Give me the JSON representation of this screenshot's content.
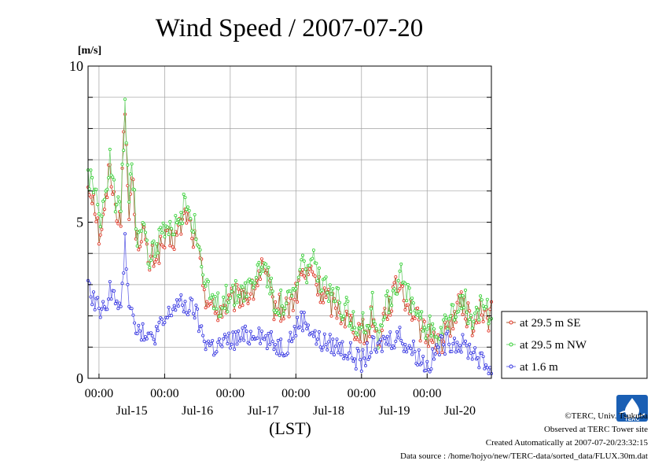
{
  "chart_data": {
    "type": "line",
    "title": "Wind Speed / 2007-07-20",
    "ylabel": "[m/s]",
    "xlabel": "(LST)",
    "ylim": [
      0,
      10
    ],
    "yticks": [
      "0",
      "5",
      "10"
    ],
    "x_range": [
      "2007-07-14T20:00",
      "2007-07-20T23:30"
    ],
    "x_time_tick_label": "00:00",
    "x_time_ticks": [
      "2007-07-15T00:00",
      "2007-07-16T00:00",
      "2007-07-17T00:00",
      "2007-07-18T00:00",
      "2007-07-19T00:00",
      "2007-07-20T00:00"
    ],
    "x_day_labels": [
      "Jul-15",
      "Jul-16",
      "Jul-17",
      "Jul-18",
      "Jul-19",
      "Jul-20"
    ],
    "grid": true,
    "legend_position": "right",
    "series": [
      {
        "name": "at 29.5 m SE",
        "color": "#e03020",
        "line_color": "#a05a28",
        "keypoints": [
          [
            "2007-07-14T20:00",
            6.2
          ],
          [
            "2007-07-14T22:00",
            5.9
          ],
          [
            "2007-07-15T00:00",
            4.6
          ],
          [
            "2007-07-15T02:00",
            5.2
          ],
          [
            "2007-07-15T04:00",
            6.9
          ],
          [
            "2007-07-15T06:00",
            5.4
          ],
          [
            "2007-07-15T08:00",
            5.3
          ],
          [
            "2007-07-15T09:30",
            8.6
          ],
          [
            "2007-07-15T11:00",
            5.1
          ],
          [
            "2007-07-15T12:00",
            6.6
          ],
          [
            "2007-07-15T14:00",
            4.3
          ],
          [
            "2007-07-15T16:00",
            4.9
          ],
          [
            "2007-07-15T18:00",
            3.6
          ],
          [
            "2007-07-15T20:00",
            3.9
          ],
          [
            "2007-07-16T00:00",
            4.3
          ],
          [
            "2007-07-16T04:00",
            4.5
          ],
          [
            "2007-07-16T08:00",
            5.3
          ],
          [
            "2007-07-16T11:00",
            4.4
          ],
          [
            "2007-07-16T13:00",
            3.7
          ],
          [
            "2007-07-16T15:00",
            2.7
          ],
          [
            "2007-07-16T18:00",
            2.1
          ],
          [
            "2007-07-17T00:00",
            2.4
          ],
          [
            "2007-07-17T04:00",
            2.7
          ],
          [
            "2007-07-17T08:00",
            2.7
          ],
          [
            "2007-07-17T10:00",
            3.2
          ],
          [
            "2007-07-17T12:00",
            3.5
          ],
          [
            "2007-07-17T14:00",
            2.9
          ],
          [
            "2007-07-17T16:00",
            2.3
          ],
          [
            "2007-07-17T20:00",
            2.2
          ],
          [
            "2007-07-18T00:00",
            2.6
          ],
          [
            "2007-07-18T02:00",
            3.4
          ],
          [
            "2007-07-18T04:00",
            3.2
          ],
          [
            "2007-07-18T06:00",
            3.5
          ],
          [
            "2007-07-18T08:00",
            2.9
          ],
          [
            "2007-07-18T12:00",
            2.5
          ],
          [
            "2007-07-18T16:00",
            2.2
          ],
          [
            "2007-07-18T20:00",
            1.8
          ],
          [
            "2007-07-19T00:00",
            1.5
          ],
          [
            "2007-07-19T02:00",
            1.4
          ],
          [
            "2007-07-19T04:00",
            2.1
          ],
          [
            "2007-07-19T06:00",
            1.1
          ],
          [
            "2007-07-19T08:00",
            2.0
          ],
          [
            "2007-07-19T12:00",
            2.7
          ],
          [
            "2007-07-19T14:00",
            3.1
          ],
          [
            "2007-07-19T16:00",
            2.6
          ],
          [
            "2007-07-19T18:00",
            2.3
          ],
          [
            "2007-07-19T20:00",
            1.9
          ],
          [
            "2007-07-20T00:00",
            1.2
          ],
          [
            "2007-07-20T02:00",
            1.5
          ],
          [
            "2007-07-20T04:00",
            1.1
          ],
          [
            "2007-07-20T06:00",
            1.3
          ],
          [
            "2007-07-20T08:00",
            1.7
          ],
          [
            "2007-07-20T10:00",
            2.0
          ],
          [
            "2007-07-20T12:00",
            2.4
          ],
          [
            "2007-07-20T14:00",
            2.2
          ],
          [
            "2007-07-20T16:00",
            1.8
          ],
          [
            "2007-07-20T18:00",
            1.7
          ],
          [
            "2007-07-20T20:00",
            2.2
          ],
          [
            "2007-07-20T22:00",
            1.9
          ],
          [
            "2007-07-20T23:30",
            2.1
          ]
        ]
      },
      {
        "name": "at 29.5 m NW",
        "color": "#30d030",
        "line_color": "#70d070",
        "keypoints": [
          [
            "2007-07-14T20:00",
            6.5
          ],
          [
            "2007-07-14T22:00",
            6.3
          ],
          [
            "2007-07-15T00:00",
            5.0
          ],
          [
            "2007-07-15T02:00",
            5.5
          ],
          [
            "2007-07-15T04:00",
            7.3
          ],
          [
            "2007-07-15T06:00",
            5.7
          ],
          [
            "2007-07-15T08:00",
            5.5
          ],
          [
            "2007-07-15T09:30",
            8.8
          ],
          [
            "2007-07-15T11:00",
            5.4
          ],
          [
            "2007-07-15T12:00",
            7.0
          ],
          [
            "2007-07-15T14:00",
            4.6
          ],
          [
            "2007-07-15T16:00",
            5.2
          ],
          [
            "2007-07-15T18:00",
            3.9
          ],
          [
            "2007-07-15T20:00",
            4.2
          ],
          [
            "2007-07-16T00:00",
            4.6
          ],
          [
            "2007-07-16T04:00",
            4.8
          ],
          [
            "2007-07-16T08:00",
            5.7
          ],
          [
            "2007-07-16T11:00",
            4.8
          ],
          [
            "2007-07-16T13:00",
            4.0
          ],
          [
            "2007-07-16T15:00",
            2.9
          ],
          [
            "2007-07-16T18:00",
            2.3
          ],
          [
            "2007-07-17T00:00",
            2.6
          ],
          [
            "2007-07-17T04:00",
            2.9
          ],
          [
            "2007-07-17T08:00",
            3.0
          ],
          [
            "2007-07-17T10:00",
            3.5
          ],
          [
            "2007-07-17T12:00",
            3.8
          ],
          [
            "2007-07-17T14:00",
            3.2
          ],
          [
            "2007-07-17T16:00",
            2.5
          ],
          [
            "2007-07-17T20:00",
            2.4
          ],
          [
            "2007-07-18T00:00",
            2.8
          ],
          [
            "2007-07-18T02:00",
            3.7
          ],
          [
            "2007-07-18T04:00",
            3.5
          ],
          [
            "2007-07-18T06:00",
            3.9
          ],
          [
            "2007-07-18T08:00",
            3.2
          ],
          [
            "2007-07-18T12:00",
            2.7
          ],
          [
            "2007-07-18T16:00",
            2.4
          ],
          [
            "2007-07-18T20:00",
            2.0
          ],
          [
            "2007-07-19T00:00",
            1.7
          ],
          [
            "2007-07-19T02:00",
            1.6
          ],
          [
            "2007-07-19T04:00",
            2.3
          ],
          [
            "2007-07-19T06:00",
            1.3
          ],
          [
            "2007-07-19T08:00",
            2.2
          ],
          [
            "2007-07-19T12:00",
            2.9
          ],
          [
            "2007-07-19T14:00",
            3.4
          ],
          [
            "2007-07-19T16:00",
            2.8
          ],
          [
            "2007-07-19T18:00",
            2.5
          ],
          [
            "2007-07-19T20:00",
            2.1
          ],
          [
            "2007-07-20T00:00",
            1.4
          ],
          [
            "2007-07-20T02:00",
            1.7
          ],
          [
            "2007-07-20T04:00",
            1.3
          ],
          [
            "2007-07-20T06:00",
            1.5
          ],
          [
            "2007-07-20T08:00",
            1.9
          ],
          [
            "2007-07-20T10:00",
            2.2
          ],
          [
            "2007-07-20T12:00",
            2.7
          ],
          [
            "2007-07-20T14:00",
            2.4
          ],
          [
            "2007-07-20T16:00",
            2.0
          ],
          [
            "2007-07-20T18:00",
            1.9
          ],
          [
            "2007-07-20T20:00",
            2.4
          ],
          [
            "2007-07-20T22:00",
            2.1
          ],
          [
            "2007-07-20T23:30",
            2.3
          ]
        ]
      },
      {
        "name": "at 1.6 m",
        "color": "#3030e0",
        "line_color": "#6a6ae8",
        "keypoints": [
          [
            "2007-07-14T20:00",
            2.8
          ],
          [
            "2007-07-14T22:00",
            2.6
          ],
          [
            "2007-07-15T00:00",
            2.3
          ],
          [
            "2007-07-15T02:00",
            2.1
          ],
          [
            "2007-07-15T04:00",
            3.0
          ],
          [
            "2007-07-15T06:00",
            2.4
          ],
          [
            "2007-07-15T08:00",
            2.2
          ],
          [
            "2007-07-15T09:30",
            4.3
          ],
          [
            "2007-07-15T11:00",
            2.6
          ],
          [
            "2007-07-15T12:00",
            2.3
          ],
          [
            "2007-07-15T14:00",
            1.6
          ],
          [
            "2007-07-15T16:00",
            1.4
          ],
          [
            "2007-07-15T18:00",
            1.2
          ],
          [
            "2007-07-15T20:00",
            1.4
          ],
          [
            "2007-07-16T00:00",
            1.8
          ],
          [
            "2007-07-16T04:00",
            2.4
          ],
          [
            "2007-07-16T08:00",
            2.3
          ],
          [
            "2007-07-16T11:00",
            2.2
          ],
          [
            "2007-07-16T13:00",
            1.6
          ],
          [
            "2007-07-16T15:00",
            1.2
          ],
          [
            "2007-07-16T18:00",
            1.0
          ],
          [
            "2007-07-17T00:00",
            1.2
          ],
          [
            "2007-07-17T04:00",
            1.3
          ],
          [
            "2007-07-17T08:00",
            1.4
          ],
          [
            "2007-07-17T10:00",
            1.6
          ],
          [
            "2007-07-17T12:00",
            1.3
          ],
          [
            "2007-07-17T14:00",
            1.2
          ],
          [
            "2007-07-17T16:00",
            1.1
          ],
          [
            "2007-07-17T20:00",
            1.0
          ],
          [
            "2007-07-18T00:00",
            1.6
          ],
          [
            "2007-07-18T02:00",
            1.9
          ],
          [
            "2007-07-18T04:00",
            1.8
          ],
          [
            "2007-07-18T06:00",
            1.5
          ],
          [
            "2007-07-18T08:00",
            1.2
          ],
          [
            "2007-07-18T12:00",
            1.1
          ],
          [
            "2007-07-18T16:00",
            1.0
          ],
          [
            "2007-07-18T20:00",
            0.8
          ],
          [
            "2007-07-19T00:00",
            0.5
          ],
          [
            "2007-07-19T02:00",
            0.8
          ],
          [
            "2007-07-19T04:00",
            1.0
          ],
          [
            "2007-07-19T06:00",
            0.9
          ],
          [
            "2007-07-19T08:00",
            1.2
          ],
          [
            "2007-07-19T12:00",
            1.3
          ],
          [
            "2007-07-19T14:00",
            1.4
          ],
          [
            "2007-07-19T16:00",
            1.1
          ],
          [
            "2007-07-19T18:00",
            1.0
          ],
          [
            "2007-07-19T20:00",
            0.8
          ],
          [
            "2007-07-20T00:00",
            0.4
          ],
          [
            "2007-07-20T02:00",
            0.6
          ],
          [
            "2007-07-20T04:00",
            1.0
          ],
          [
            "2007-07-20T06:00",
            1.1
          ],
          [
            "2007-07-20T08:00",
            1.2
          ],
          [
            "2007-07-20T10:00",
            1.2
          ],
          [
            "2007-07-20T12:00",
            1.1
          ],
          [
            "2007-07-20T14:00",
            1.0
          ],
          [
            "2007-07-20T16:00",
            0.9
          ],
          [
            "2007-07-20T18:00",
            0.8
          ],
          [
            "2007-07-20T20:00",
            0.5
          ],
          [
            "2007-07-20T22:00",
            0.4
          ],
          [
            "2007-07-20T23:30",
            0.3
          ]
        ]
      }
    ]
  },
  "footer": {
    "copyright": "©TERC, Univ. Tsukuba",
    "site": "Observed at TERC Tower site",
    "created": "Created Automatically at 2007-07-20/23:32:15",
    "source": "Data source : /home/hojyo/new/TERC-data/sorted_data/FLUX.30m.dat"
  },
  "logo": {
    "text": "TERC",
    "color": "#1a5fb4"
  }
}
